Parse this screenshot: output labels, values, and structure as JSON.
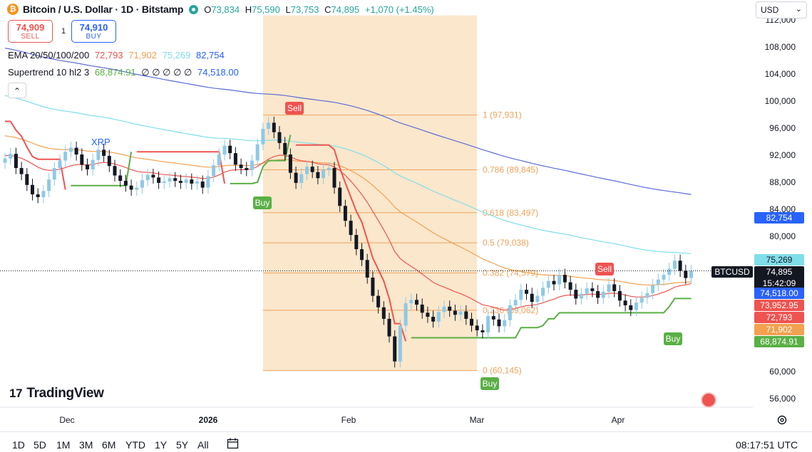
{
  "header": {
    "logo_glyph": "₿",
    "title": "Bitcoin / U.S. Dollar · 1D · Bitstamp",
    "ohlc": {
      "o_label": "O",
      "o": "73,834",
      "h_label": "H",
      "h": "75,590",
      "l_label": "L",
      "l": "73,753",
      "c_label": "C",
      "c": "74,895",
      "change": "+1,070 (+1.45%)"
    },
    "currency_select": "USD",
    "collapse_glyph": "⌃"
  },
  "trade": {
    "sell_price": "74,909",
    "sell_label": "SELL",
    "spread": "1",
    "buy_price": "74,910",
    "buy_label": "BUY"
  },
  "indicators": {
    "ema_label": "EMA 20/50/100/200",
    "ema20": "72,793",
    "ema50": "71,902",
    "ema100": "75,269",
    "ema200": "82,754",
    "st_label": "Supertrend 10 hl2 3",
    "st_val1": "68,874.91",
    "st_placeholders": "∅ ∅ ∅ ∅ ∅",
    "st_val2": "74,518.00"
  },
  "colors": {
    "up": "#26a69a",
    "down": "#131722",
    "ema20": "#ef5350",
    "ema50": "#f2a14f",
    "ema100": "#80deea",
    "ema200": "#5b6bd9",
    "st_down": "#ef5350",
    "st_up": "#5aaf45",
    "fib": "#f0a35c",
    "fib_fill": "#fae7cc",
    "up_candle": "#8ec9e6"
  },
  "price_axis": {
    "ticks": [
      "112,000",
      "108,000",
      "104,000",
      "100,000",
      "96,000",
      "92,000",
      "88,000",
      "84,000",
      "80,000",
      "60,000",
      "56,000"
    ],
    "tags": [
      {
        "text": "82,754",
        "color": "#2962ff"
      },
      {
        "text": "75,269",
        "color": "#80deea"
      },
      {
        "text": "74,518.00",
        "color": "#2962ff"
      },
      {
        "text": "73,952.95",
        "color": "#ef5350"
      },
      {
        "text": "72,793",
        "color": "#ef5350"
      },
      {
        "text": "71,902",
        "color": "#f2a14f"
      },
      {
        "text": "68,874.91",
        "color": "#5aaf45"
      }
    ],
    "last_symbol": "BTCUSD",
    "last_price": "74,895",
    "countdown": "15:42:09"
  },
  "time_axis": {
    "labels": [
      "Dec",
      "2026",
      "Feb",
      "Mar",
      "Apr"
    ]
  },
  "annotations": {
    "xrp": "XRP",
    "sell1": "Sell",
    "buy1": "Buy",
    "sell2": "Sell",
    "buy2": "Buy",
    "buy3": "Buy"
  },
  "branding": {
    "logo_glyph": "17",
    "name": "TradingView"
  },
  "bottom": {
    "timeframes": [
      "1D",
      "5D",
      "1M",
      "3M",
      "6M",
      "YTD",
      "1Y",
      "5Y",
      "All"
    ],
    "clock": "08:17:51 UTC"
  },
  "chart_data": {
    "type": "candlestick",
    "symbol": "BTCUSD",
    "title": "Bitcoin / U.S. Dollar · 1D · Bitstamp",
    "ylim": [
      54000,
      114000
    ],
    "fib_levels": [
      {
        "ratio": "1",
        "price": 97931,
        "label": "1 (97,931)"
      },
      {
        "ratio": "0.786",
        "price": 89845,
        "label": "0.786 (89,845)"
      },
      {
        "ratio": "0.618",
        "price": 83497,
        "label": "0.618 (83,497)"
      },
      {
        "ratio": "0.5",
        "price": 79038,
        "label": "0.5 (79,038)"
      },
      {
        "ratio": "0.382",
        "price": 74579,
        "label": "0.382 (74,579)"
      },
      {
        "ratio": "0.236",
        "price": 69062,
        "label": "0.236 (69,062)"
      },
      {
        "ratio": "0",
        "price": 60145,
        "label": "0 (60,145)"
      }
    ],
    "closes": [
      91500,
      92200,
      90100,
      89200,
      87600,
      86200,
      85800,
      86700,
      88400,
      90100,
      91200,
      92500,
      93100,
      92100,
      90600,
      89900,
      91300,
      92800,
      91900,
      90400,
      89000,
      88200,
      87500,
      86900,
      87200,
      88300,
      89100,
      88700,
      87900,
      88100,
      88600,
      88200,
      87900,
      88400,
      87800,
      88100,
      87200,
      88900,
      90500,
      92100,
      93400,
      92300,
      90600,
      90100,
      89800,
      91200,
      93600,
      95900,
      96800,
      95400,
      93800,
      92100,
      89400,
      87900,
      89200,
      90300,
      89500,
      88600,
      89800,
      90100,
      87200,
      84500,
      82300,
      80200,
      78100,
      76500,
      73900,
      71200,
      69500,
      67800,
      65200,
      61500,
      66800,
      70100,
      70600,
      69900,
      68700,
      68100,
      67400,
      68800,
      69600,
      69000,
      68400,
      68900,
      67800,
      66800,
      66100,
      65800,
      68200,
      67700,
      66700,
      67600,
      69800,
      70600,
      72100,
      71500,
      70300,
      71200,
      72400,
      73400,
      72900,
      74300,
      73200,
      72100,
      70800,
      71500,
      72300,
      71900,
      70900,
      71800,
      72900,
      71900,
      70500,
      69800,
      69100,
      70200,
      70900,
      71600,
      72800,
      73600,
      74300,
      75200,
      76400,
      74900,
      73834,
      74895
    ],
    "ema20_last": 72793,
    "ema50_last": 71902,
    "ema100_last": 75269,
    "ema200_last": 82754,
    "supertrend_last": 68874.91,
    "supertrend_upper_last": 74518.0,
    "signals": [
      "Sell",
      "Buy",
      "Sell",
      "Buy",
      "Buy"
    ]
  }
}
